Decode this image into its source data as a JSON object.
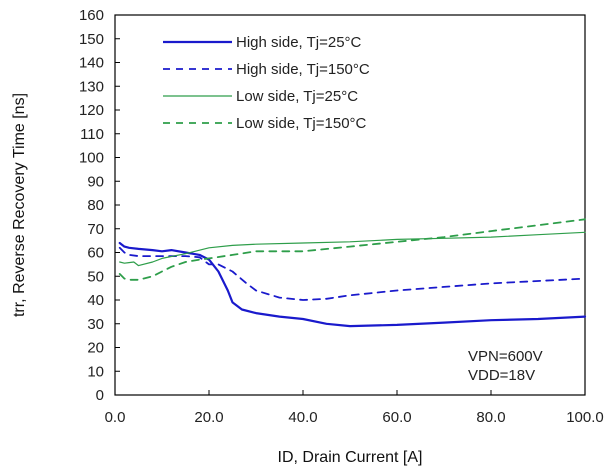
{
  "chart_data": {
    "type": "line",
    "xlabel": "ID, Drain Current [A]",
    "ylabel": "trr, Reverse Recovery Time [ns]",
    "xlim": [
      0,
      100
    ],
    "ylim": [
      0,
      160
    ],
    "xticks": [
      0,
      20,
      40,
      60,
      80,
      100
    ],
    "xtick_labels": [
      "0.0",
      "20.0",
      "40.0",
      "60.0",
      "80.0",
      "100.0"
    ],
    "yticks": [
      0,
      10,
      20,
      30,
      40,
      50,
      60,
      70,
      80,
      90,
      100,
      110,
      120,
      130,
      140,
      150,
      160
    ],
    "grid": false,
    "legend_position": "top-left",
    "annotations": [
      "VPN=600V",
      "VDD=18V"
    ],
    "series": [
      {
        "name": "High side, Tj=25°C",
        "color": "#1a1acc",
        "dash": "solid",
        "width": "thick",
        "x": [
          1,
          2,
          3,
          5,
          8,
          10,
          12,
          15,
          18,
          20,
          22,
          24,
          25,
          27,
          30,
          35,
          40,
          45,
          50,
          60,
          70,
          80,
          90,
          100
        ],
        "y": [
          64,
          62.5,
          62,
          61.5,
          61,
          60.5,
          61,
          60,
          59,
          57,
          52,
          44,
          39,
          36,
          34.5,
          33,
          32,
          30,
          29,
          29.5,
          30.5,
          31.5,
          32,
          33
        ]
      },
      {
        "name": "High side, Tj=150°C",
        "color": "#1a1acc",
        "dash": "dashed",
        "width": "medium",
        "x": [
          1,
          2,
          3,
          5,
          8,
          10,
          13,
          15,
          18,
          20,
          22,
          25,
          28,
          30,
          35,
          40,
          45,
          50,
          60,
          70,
          80,
          90,
          100
        ],
        "y": [
          62,
          60,
          59,
          58.5,
          58.5,
          58.5,
          58.5,
          58.5,
          58,
          55,
          55,
          52,
          47,
          44,
          41,
          40,
          40.5,
          42,
          44,
          45.5,
          47,
          48,
          49
        ]
      },
      {
        "name": "Low side, Tj=25°C",
        "color": "#2e9e4a",
        "dash": "solid",
        "width": "thin",
        "x": [
          1,
          2,
          4,
          5,
          8,
          10,
          15,
          20,
          25,
          30,
          40,
          50,
          60,
          70,
          80,
          90,
          100
        ],
        "y": [
          56,
          55.5,
          56,
          54.5,
          56,
          57.5,
          59.5,
          62,
          63,
          63.5,
          64,
          64.5,
          65.5,
          66,
          66.5,
          67.5,
          68.5
        ]
      },
      {
        "name": "Low side, Tj=150°C",
        "color": "#2e9e4a",
        "dash": "dashed",
        "width": "medium",
        "x": [
          1,
          2,
          3,
          5,
          8,
          10,
          12,
          15,
          18,
          20,
          25,
          30,
          40,
          50,
          60,
          70,
          80,
          90,
          100
        ],
        "y": [
          51,
          49,
          48.5,
          48.5,
          50,
          52,
          54,
          56,
          57,
          57.5,
          59,
          60.5,
          60.5,
          62.5,
          64.5,
          66.5,
          69,
          71.5,
          74
        ]
      }
    ]
  }
}
